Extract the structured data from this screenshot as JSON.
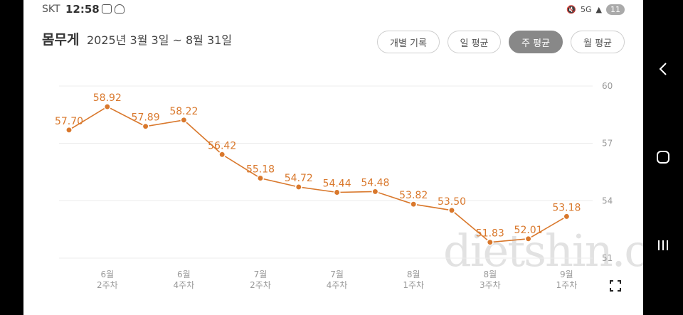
{
  "status_bar": {
    "carrier": "SKT",
    "time": "12:58",
    "network": "5G",
    "notification_count": "11"
  },
  "header": {
    "title": "몸무게",
    "date_range": "2025년 3월 3일 ~ 8월 31일"
  },
  "tabs": [
    {
      "label": "개별 기록",
      "active": false
    },
    {
      "label": "일 평균",
      "active": false
    },
    {
      "label": "주 평균",
      "active": true
    },
    {
      "label": "월 평균",
      "active": false
    }
  ],
  "watermark": "dietshin.com",
  "colors": {
    "line": "#d9782c",
    "label": "#d9782c",
    "grid": "#ececec",
    "axis_text": "#999999",
    "active_tab": "#888888"
  },
  "chart_data": {
    "type": "line",
    "title": "",
    "xlabel": "",
    "ylabel": "",
    "ylim": [
      51,
      60
    ],
    "yticks": [
      60,
      57,
      54,
      51
    ],
    "y_axis_side": "right",
    "grid": true,
    "x_tick_labels": [
      {
        "index": 1,
        "lines": [
          "6월",
          "2주차"
        ]
      },
      {
        "index": 3,
        "lines": [
          "6월",
          "4주차"
        ]
      },
      {
        "index": 5,
        "lines": [
          "7월",
          "2주차"
        ]
      },
      {
        "index": 7,
        "lines": [
          "7월",
          "4주차"
        ]
      },
      {
        "index": 9,
        "lines": [
          "8월",
          "1주차"
        ]
      },
      {
        "index": 11,
        "lines": [
          "8월",
          "3주차"
        ]
      },
      {
        "index": 13,
        "lines": [
          "9월",
          "1주차"
        ]
      }
    ],
    "series": [
      {
        "values": [
          57.7,
          58.92,
          57.89,
          58.22,
          56.42,
          55.18,
          54.72,
          54.44,
          54.48,
          53.82,
          53.5,
          51.83,
          52.01,
          53.18
        ],
        "labels": [
          "57.70",
          "58.92",
          "57.89",
          "58.22",
          "56.42",
          "55.18",
          "54.72",
          "54.44",
          "54.48",
          "53.82",
          "53.50",
          "51.83",
          "52.01",
          "53.18"
        ]
      }
    ]
  }
}
